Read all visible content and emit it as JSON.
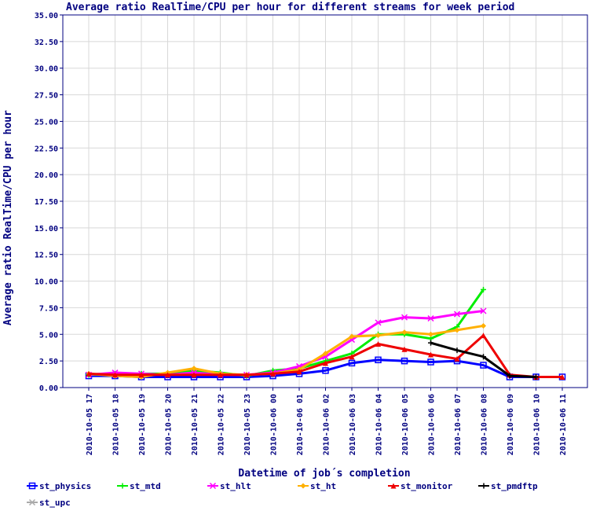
{
  "chart_data": {
    "type": "line",
    "title": "Average ratio RealTime/CPU per hour for different streams for week period",
    "xlabel": "Datetime of job´s completion",
    "ylabel": "Average ratio RealTime/CPU per hour",
    "ylim": [
      0,
      35
    ],
    "yticks": [
      "0.00",
      "2.50",
      "5.00",
      "7.50",
      "10.00",
      "12.50",
      "15.00",
      "17.50",
      "20.00",
      "22.50",
      "25.00",
      "27.50",
      "30.00",
      "32.50",
      "35.00"
    ],
    "categories": [
      "2010-10-05 17",
      "2010-10-05 18",
      "2010-10-05 19",
      "2010-10-05 20",
      "2010-10-05 21",
      "2010-10-05 22",
      "2010-10-05 23",
      "2010-10-06 00",
      "2010-10-06 01",
      "2010-10-06 02",
      "2010-10-06 03",
      "2010-10-06 04",
      "2010-10-06 05",
      "2010-10-06 06",
      "2010-10-06 07",
      "2010-10-06 08",
      "2010-10-06 09",
      "2010-10-06 10",
      "2010-10-06 11"
    ],
    "grid": true,
    "legend_position": "bottom",
    "series": [
      {
        "name": "st_physics",
        "color": "#0000ff",
        "marker": "square",
        "values": [
          1.1,
          1.1,
          1.0,
          1.0,
          1.0,
          1.0,
          1.0,
          1.1,
          1.3,
          1.6,
          2.3,
          2.6,
          2.5,
          2.4,
          2.5,
          2.1,
          1.0,
          1.0,
          1.0
        ]
      },
      {
        "name": "st_mtd",
        "color": "#00ee00",
        "marker": "plus",
        "values": [
          1.2,
          1.3,
          1.3,
          1.3,
          1.6,
          1.4,
          1.1,
          1.6,
          1.8,
          2.5,
          3.2,
          5.0,
          5.0,
          4.6,
          5.7,
          9.2,
          null,
          null,
          null
        ]
      },
      {
        "name": "st_hlt",
        "color": "#ff00ff",
        "marker": "x",
        "values": [
          1.2,
          1.4,
          1.3,
          1.2,
          1.4,
          1.2,
          1.2,
          1.4,
          2.0,
          2.9,
          4.5,
          6.1,
          6.6,
          6.5,
          6.9,
          7.2,
          null,
          null,
          null
        ]
      },
      {
        "name": "st_ht",
        "color": "#ffb000",
        "marker": "diamond",
        "values": [
          1.3,
          1.1,
          1.0,
          1.4,
          1.8,
          1.3,
          1.2,
          1.3,
          1.7,
          3.2,
          4.8,
          4.9,
          5.2,
          5.0,
          5.4,
          5.8,
          null,
          null,
          null
        ]
      },
      {
        "name": "st_monitor",
        "color": "#ee0000",
        "marker": "triangle",
        "values": [
          1.3,
          1.2,
          1.2,
          1.2,
          1.2,
          1.2,
          1.2,
          1.3,
          1.5,
          2.3,
          2.9,
          4.1,
          3.6,
          3.1,
          2.7,
          4.9,
          1.2,
          1.0,
          1.0
        ]
      },
      {
        "name": "st_pmdftp",
        "color": "#000000",
        "marker": "plus",
        "values": [
          null,
          null,
          null,
          null,
          null,
          null,
          null,
          null,
          null,
          null,
          null,
          null,
          null,
          4.2,
          3.5,
          2.9,
          1.1,
          1.0,
          null
        ]
      },
      {
        "name": "st_upc",
        "color": "#aaaaaa",
        "marker": "x",
        "values": [
          null,
          null,
          null,
          null,
          null,
          null,
          null,
          null,
          null,
          null,
          null,
          null,
          null,
          null,
          null,
          null,
          null,
          null,
          null
        ]
      }
    ]
  }
}
